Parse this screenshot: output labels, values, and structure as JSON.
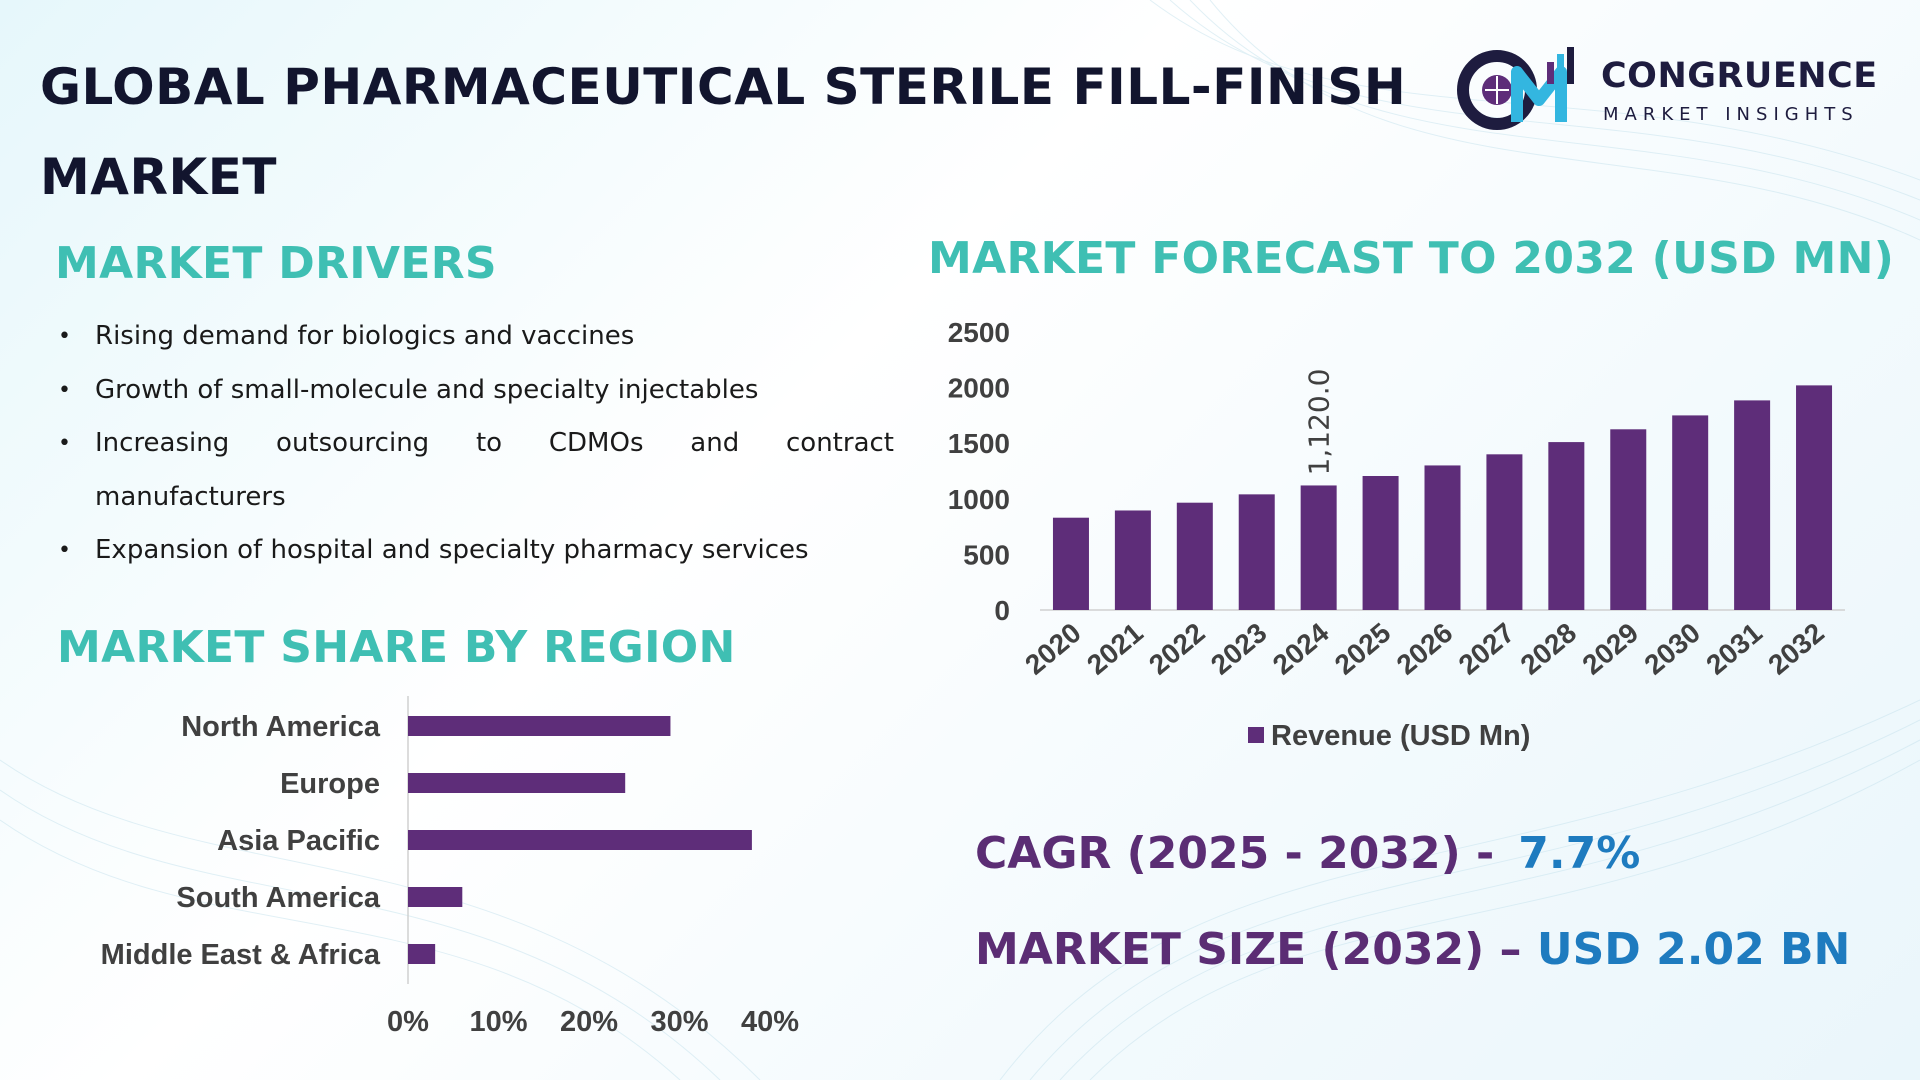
{
  "title": "GLOBAL PHARMACEUTICAL STERILE FILL-FINISH MARKET",
  "logo": {
    "name": "CONGRUENCE",
    "tagline": "MARKET INSIGHTS"
  },
  "drivers": {
    "heading": "MARKET DRIVERS",
    "items": [
      "Rising demand for biologics and vaccines",
      "Growth of small-molecule and specialty injectables",
      "Increasing outsourcing to CDMOs and contract manufacturers",
      "Expansion of hospital and specialty pharmacy services"
    ]
  },
  "forecast_heading": "MARKET FORECAST TO 2032 (USD MN)",
  "region_heading": "MARKET SHARE BY REGION",
  "cagr": {
    "label": "CAGR (2025 - 2032) -",
    "value": "7.7%"
  },
  "market_size": {
    "label": "MARKET SIZE (2032) –",
    "value": "USD 2.02 BN"
  },
  "colors": {
    "bar": "#5e2d79",
    "accent": "#3fbfb3",
    "purple_text": "#5b2d74",
    "blue_text": "#1e7bbf"
  },
  "chart_data": [
    {
      "type": "bar",
      "title": "MARKET FORECAST TO 2032 (USD MN)",
      "categories": [
        "2020",
        "2021",
        "2022",
        "2023",
        "2024",
        "2025",
        "2026",
        "2027",
        "2028",
        "2029",
        "2030",
        "2031",
        "2032"
      ],
      "series": [
        {
          "name": "Revenue (USD Mn)",
          "values": [
            830,
            895,
            965,
            1040,
            1120,
            1205,
            1300,
            1400,
            1510,
            1625,
            1750,
            1885,
            2020
          ]
        }
      ],
      "yticks": [
        "0",
        "500",
        "1000",
        "1500",
        "2000",
        "2500"
      ],
      "ylim": [
        0,
        2500
      ],
      "data_labels": [
        {
          "category": "2024",
          "text": "1,120.0"
        }
      ],
      "legend": "bottom"
    },
    {
      "type": "bar",
      "orientation": "horizontal",
      "title": "MARKET SHARE BY REGION",
      "categories": [
        "North America",
        "Europe",
        "Asia Pacific",
        "South America",
        "Middle East & Africa"
      ],
      "values": [
        29,
        24,
        38,
        6,
        3
      ],
      "xticks": [
        "0%",
        "10%",
        "20%",
        "30%",
        "40%"
      ],
      "xlim": [
        0,
        40
      ]
    }
  ]
}
